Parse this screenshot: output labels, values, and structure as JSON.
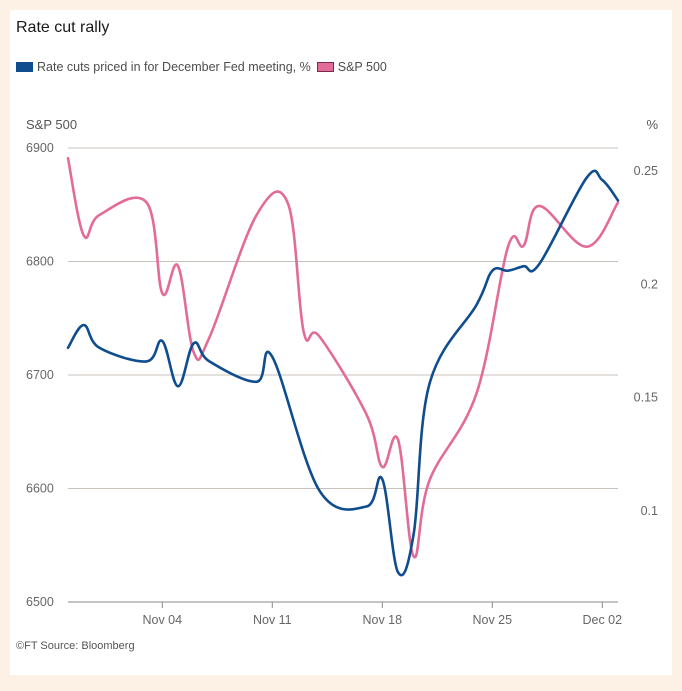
{
  "colors": {
    "page_background": "#fdf1e6",
    "card_background": "#ffffff",
    "rate_cuts": "#0f4d8f",
    "sp500": "#e36b97",
    "gridline": "#c8c2bb",
    "axis": "#8a8a8a"
  },
  "source": "©FT Source: Bloomberg",
  "chart_data": {
    "type": "line",
    "title": "Rate cut rally",
    "legend": [
      {
        "name": "Rate cuts priced in for December Fed meeting, %",
        "color": "#0f4d8f"
      },
      {
        "name": "S&P 500",
        "color": "#e36b97"
      }
    ],
    "legend_position": "top-left",
    "grid": true,
    "x_axis": {
      "type": "date",
      "range": [
        "2025-10-29",
        "2025-12-03"
      ],
      "ticks": [
        {
          "label": "Nov 04",
          "date": "2025-11-04"
        },
        {
          "label": "Nov 11",
          "date": "2025-11-11"
        },
        {
          "label": "Nov 18",
          "date": "2025-11-18"
        },
        {
          "label": "Nov 25",
          "date": "2025-11-25"
        },
        {
          "label": "Dec 02",
          "date": "2025-12-02"
        }
      ]
    },
    "y_left": {
      "label": "S&P 500",
      "range": [
        6500,
        6900
      ],
      "ticks": [
        6900,
        6800,
        6700,
        6600,
        6500
      ]
    },
    "y_right": {
      "label": "%",
      "range": [
        0.06,
        0.26
      ],
      "ticks": [
        0.25,
        0.2,
        0.15,
        0.1
      ],
      "tick_labels": [
        "0.25",
        "0.2",
        "0.15",
        "0.1"
      ]
    },
    "series": [
      {
        "name": "S&P 500",
        "axis": "left",
        "color": "#e36b97",
        "points": [
          {
            "day": 0,
            "value": 6891
          },
          {
            "day": 1,
            "value": 6823
          },
          {
            "day": 2,
            "value": 6841
          },
          {
            "day": 5,
            "value": 6852
          },
          {
            "day": 6,
            "value": 6772
          },
          {
            "day": 7,
            "value": 6796
          },
          {
            "day": 8,
            "value": 6720
          },
          {
            "day": 9,
            "value": 6733
          },
          {
            "day": 12,
            "value": 6841
          },
          {
            "day": 14,
            "value": 6851
          },
          {
            "day": 15,
            "value": 6738
          },
          {
            "day": 16,
            "value": 6734
          },
          {
            "day": 19,
            "value": 6665
          },
          {
            "day": 20,
            "value": 6619
          },
          {
            "day": 21,
            "value": 6643
          },
          {
            "day": 22,
            "value": 6540
          },
          {
            "day": 23,
            "value": 6607
          },
          {
            "day": 26,
            "value": 6684
          },
          {
            "day": 28,
            "value": 6813
          },
          {
            "day": 29,
            "value": 6814
          },
          {
            "day": 30,
            "value": 6849
          },
          {
            "day": 33,
            "value": 6813
          },
          {
            "day": 35,
            "value": 6852
          }
        ]
      },
      {
        "name": "Rate cuts priced in for December Fed meeting, %",
        "axis": "right",
        "color": "#0f4d8f",
        "points": [
          {
            "day": 0,
            "value": 0.172
          },
          {
            "day": 1,
            "value": 0.182
          },
          {
            "day": 2,
            "value": 0.172
          },
          {
            "day": 5,
            "value": 0.166
          },
          {
            "day": 6,
            "value": 0.175
          },
          {
            "day": 7,
            "value": 0.155
          },
          {
            "day": 8,
            "value": 0.174
          },
          {
            "day": 9,
            "value": 0.166
          },
          {
            "day": 12,
            "value": 0.157
          },
          {
            "day": 13,
            "value": 0.168
          },
          {
            "day": 16,
            "value": 0.109
          },
          {
            "day": 19,
            "value": 0.102
          },
          {
            "day": 20,
            "value": 0.114
          },
          {
            "day": 21,
            "value": 0.073
          },
          {
            "day": 22,
            "value": 0.09
          },
          {
            "day": 23,
            "value": 0.156
          },
          {
            "day": 26,
            "value": 0.191
          },
          {
            "day": 27,
            "value": 0.206
          },
          {
            "day": 28,
            "value": 0.206
          },
          {
            "day": 29,
            "value": 0.208
          },
          {
            "day": 30,
            "value": 0.209
          },
          {
            "day": 33,
            "value": 0.247
          },
          {
            "day": 34,
            "value": 0.246
          },
          {
            "day": 35,
            "value": 0.237
          }
        ]
      }
    ],
    "day_zero_date": "2025-10-29"
  }
}
